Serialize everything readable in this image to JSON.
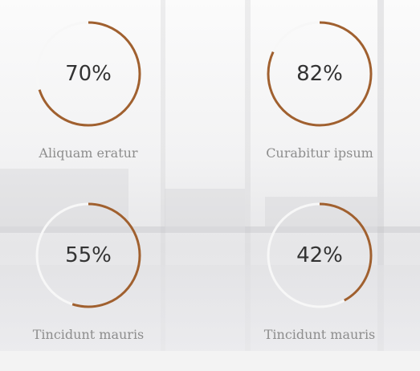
{
  "colors": {
    "accent": "#a0602f",
    "track": "#f7f7f7",
    "value_text": "#333333",
    "label_text": "#8d8d8d"
  },
  "stats": [
    {
      "value": 70,
      "value_text": "70%",
      "label": "Aliquam eratur"
    },
    {
      "value": 82,
      "value_text": "82%",
      "label": "Curabitur ipsum"
    },
    {
      "value": 55,
      "value_text": "55%",
      "label": "Tincidunt mauris"
    },
    {
      "value": 42,
      "value_text": "42%",
      "label": "Tincidunt mauris"
    }
  ]
}
